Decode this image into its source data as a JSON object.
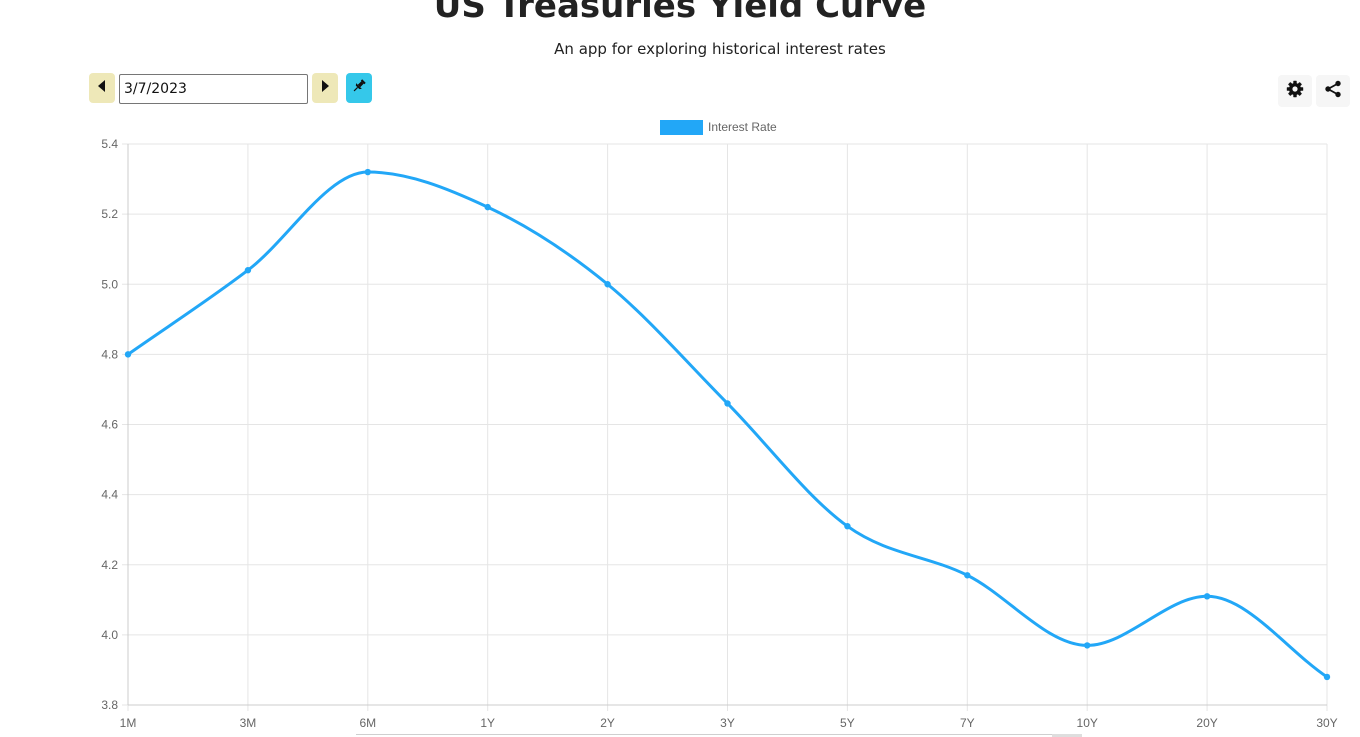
{
  "header": {
    "title": "US Treasuries Yield Curve",
    "subtitle": "An app for exploring historical interest rates"
  },
  "controls": {
    "date_value": "3/7/2023",
    "prev_icon": "caret-left-icon",
    "next_icon": "caret-right-icon",
    "pin_icon": "pin-icon",
    "settings_icon": "gear-icon",
    "share_icon": "share-icon"
  },
  "colors": {
    "series": "#22a7f7",
    "nav_button": "#eee8b8",
    "pin_button": "#35c8ea"
  },
  "chart_data": {
    "type": "line",
    "categories": [
      "1M",
      "3M",
      "6M",
      "1Y",
      "2Y",
      "3Y",
      "5Y",
      "7Y",
      "10Y",
      "20Y",
      "30Y"
    ],
    "series": [
      {
        "name": "Interest Rate",
        "values": [
          4.8,
          5.04,
          5.32,
          5.22,
          5.0,
          4.66,
          4.31,
          4.17,
          3.97,
          4.11,
          3.88
        ]
      }
    ],
    "ylim": [
      3.8,
      5.4
    ],
    "yticks": [
      "5.4",
      "5.2",
      "5.0",
      "4.8",
      "4.6",
      "4.4",
      "4.2",
      "4.0",
      "3.8"
    ],
    "grid": true,
    "legend": "top-center",
    "smooth": true
  }
}
